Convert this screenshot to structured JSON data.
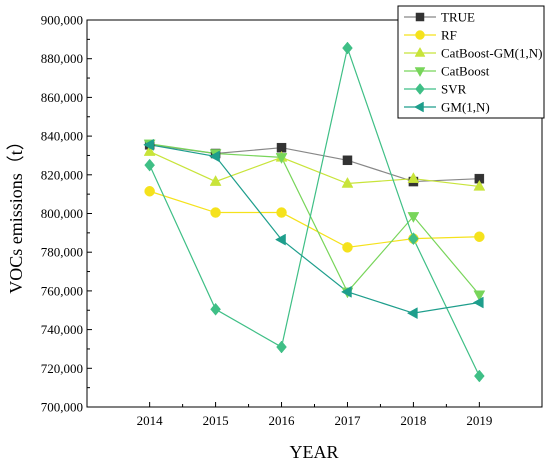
{
  "chart_data": {
    "type": "line",
    "xlabel": "YEAR",
    "ylabel": "VOCs emissions（t）",
    "x": [
      "2014",
      "2015",
      "2016",
      "2017",
      "2018",
      "2019"
    ],
    "xlim": [
      2013.05,
      2019.95
    ],
    "ylim": [
      700000,
      900000
    ],
    "y_ticks": [
      700000,
      720000,
      740000,
      760000,
      780000,
      800000,
      820000,
      840000,
      860000,
      880000,
      900000
    ],
    "y_tick_labels": [
      "700,000",
      "720,000",
      "740,000",
      "760,000",
      "780,000",
      "800,000",
      "820,000",
      "840,000",
      "860,000",
      "880,000",
      "900,000"
    ],
    "legend_position": "top-right",
    "series": [
      {
        "name": "TRUE",
        "color": "#333333",
        "line_color": "#888888",
        "marker": "square",
        "values": [
          835500,
          831000,
          834000,
          827500,
          816500,
          818000
        ]
      },
      {
        "name": "RF",
        "color": "#f5e21c",
        "line_color": "#f5e21c",
        "marker": "circle",
        "values": [
          811500,
          800500,
          800500,
          782500,
          787000,
          788000
        ]
      },
      {
        "name": "CatBoost-GM(1,N)",
        "color": "#c8e43a",
        "line_color": "#c8e43a",
        "marker": "triangle-up",
        "values": [
          832000,
          816500,
          829000,
          815500,
          818000,
          814000
        ]
      },
      {
        "name": "CatBoost",
        "color": "#78d55a",
        "line_color": "#78d55a",
        "marker": "triangle-down",
        "values": [
          836000,
          831000,
          829000,
          759500,
          798500,
          758000
        ]
      },
      {
        "name": "SVR",
        "color": "#3fbf86",
        "line_color": "#3fbf86",
        "marker": "diamond",
        "values": [
          825000,
          750500,
          731000,
          885500,
          787000,
          716000
        ]
      },
      {
        "name": "GM(1,N)",
        "color": "#1e9e8c",
        "line_color": "#1e9e8c",
        "marker": "triangle-left",
        "values": [
          835500,
          829500,
          786500,
          759500,
          748500,
          754000
        ]
      }
    ]
  }
}
